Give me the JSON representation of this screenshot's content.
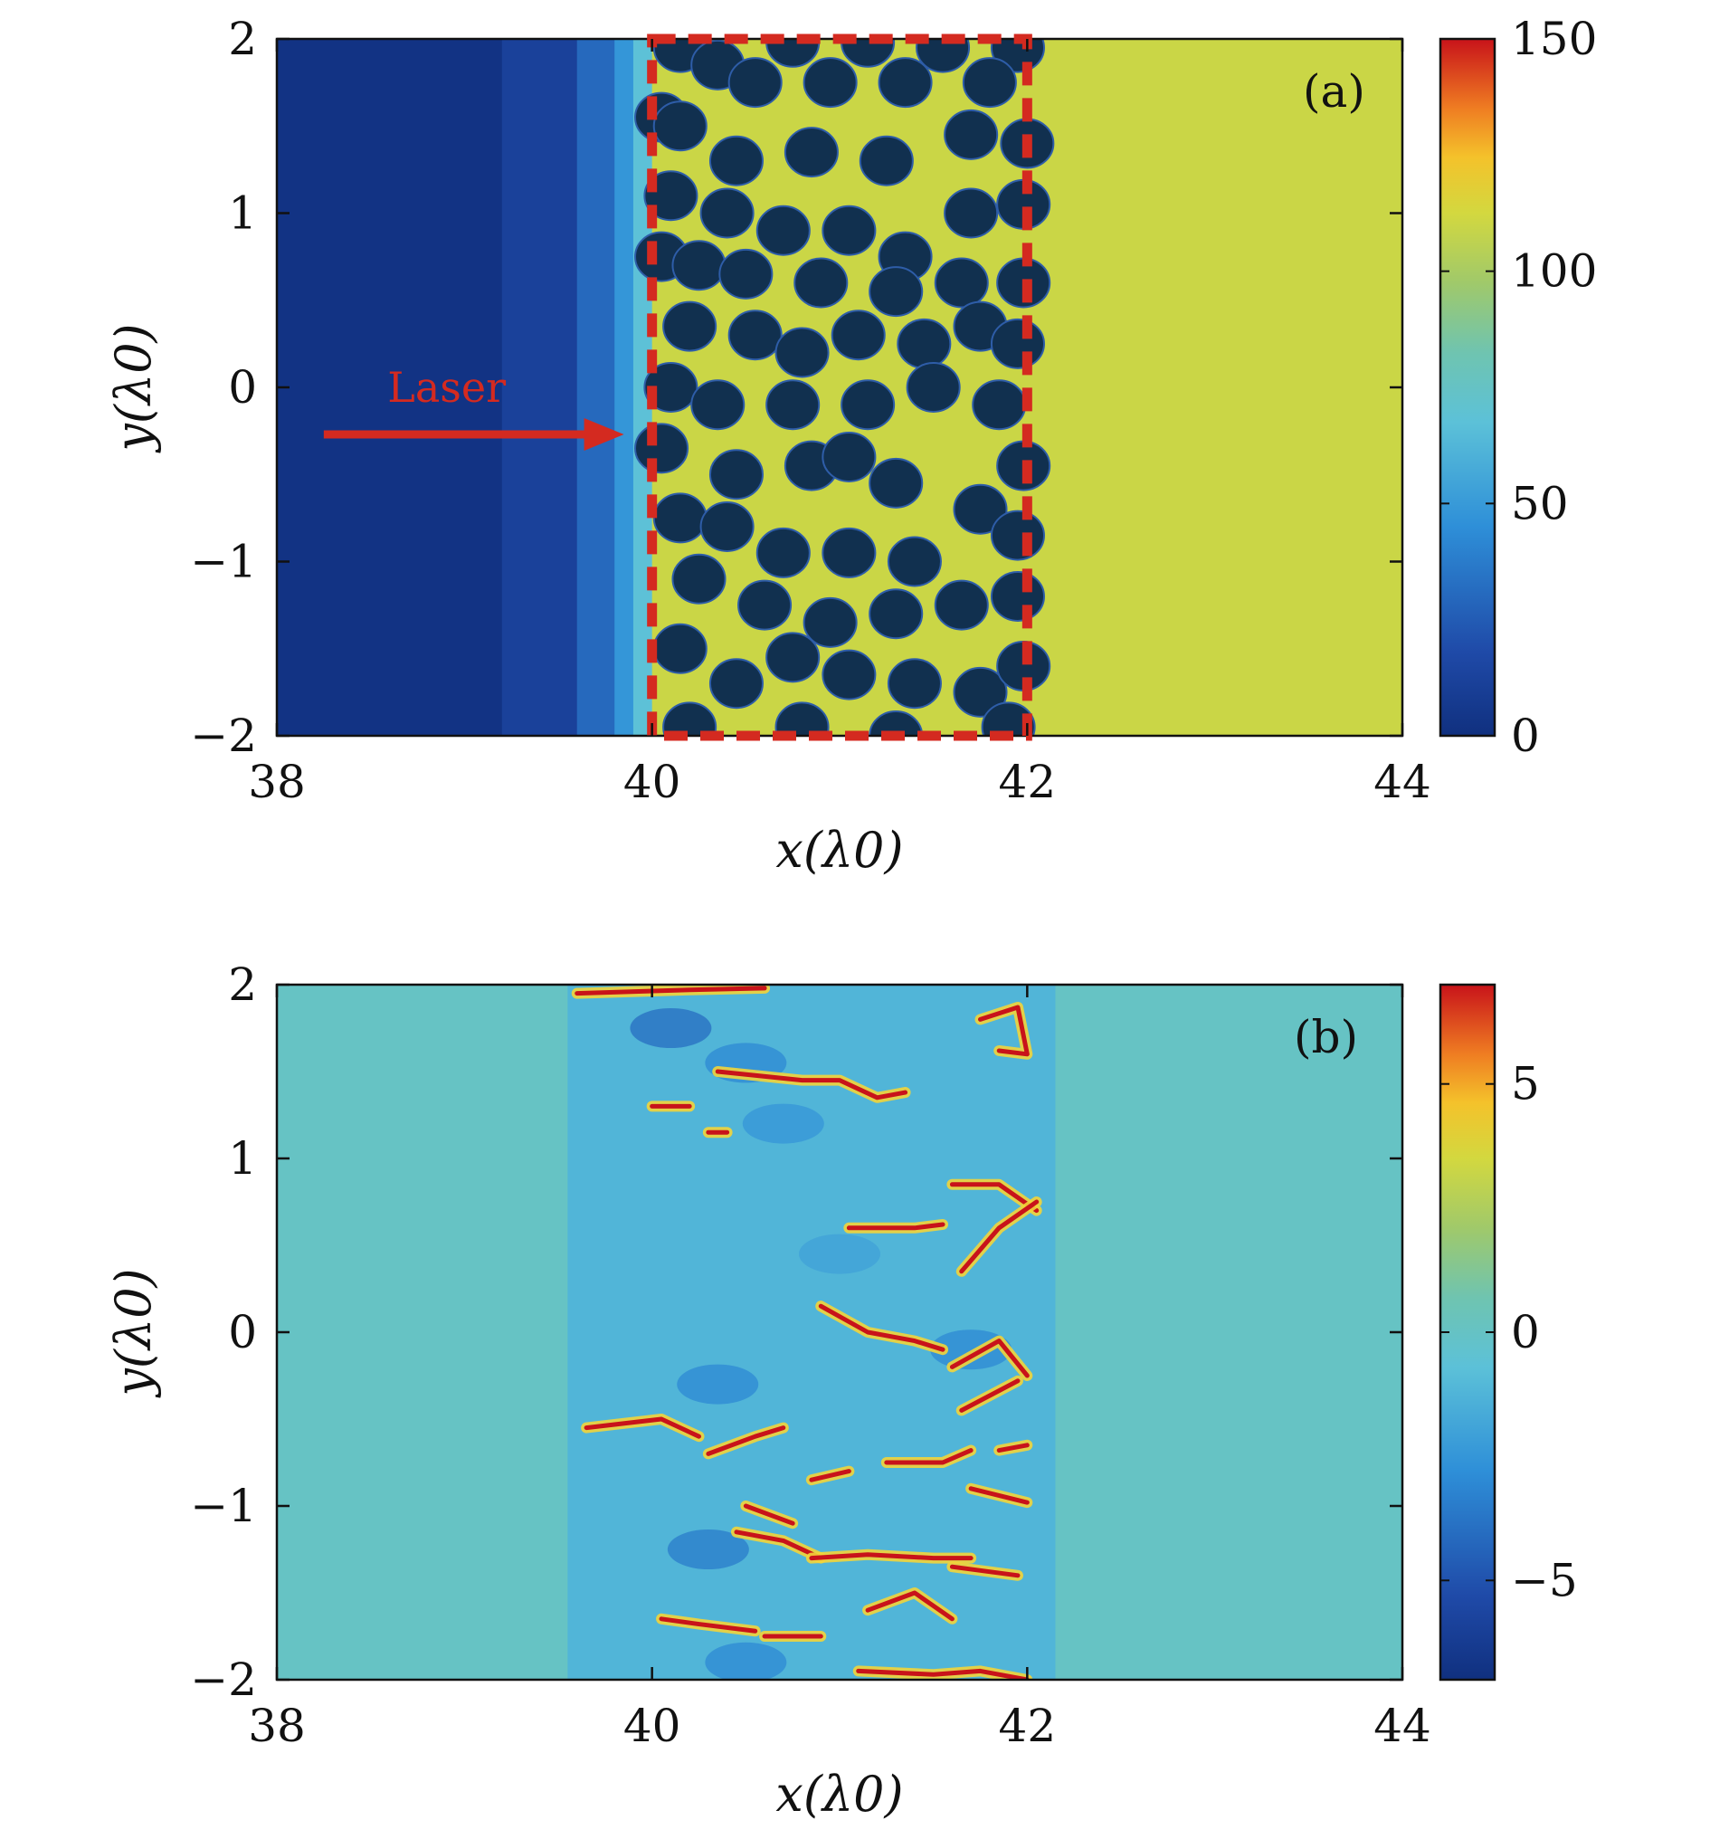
{
  "chart_data": [
    {
      "type": "heatmap",
      "panel_label": "(a)",
      "xlabel": "x(λ0)",
      "ylabel": "y(λ0)",
      "xlim": [
        38,
        44
      ],
      "ylim": [
        -2,
        2
      ],
      "xticks": [
        38,
        40,
        42,
        44
      ],
      "yticks": [
        -2,
        -1,
        0,
        1,
        2
      ],
      "xtick_labels": [
        "38",
        "40",
        "42",
        "44"
      ],
      "ytick_labels": [
        "−2",
        "−1",
        "0",
        "1",
        "2"
      ],
      "colorbar": {
        "min": 0,
        "max": 150,
        "ticks": [
          0,
          50,
          100,
          150
        ],
        "tick_labels": [
          "0",
          "50",
          "100",
          "150"
        ],
        "colormap": "jet"
      },
      "regions": [
        {
          "x": [
            38,
            39.2
          ],
          "value": 2
        },
        {
          "x": [
            39.2,
            39.6
          ],
          "value": 12
        },
        {
          "x": [
            39.6,
            39.8
          ],
          "value": 30
        },
        {
          "x": [
            39.8,
            39.9
          ],
          "value": 48
        },
        {
          "x": [
            39.9,
            40.0
          ],
          "value": 68
        },
        {
          "x": [
            40.0,
            44.0
          ],
          "value": 110
        }
      ],
      "circle_value": 0,
      "circle_radius": 0.14,
      "circles": [
        [
          40.15,
          1.95
        ],
        [
          40.35,
          1.85
        ],
        [
          40.75,
          1.98
        ],
        [
          41.15,
          1.98
        ],
        [
          41.55,
          1.95
        ],
        [
          41.95,
          1.95
        ],
        [
          40.05,
          1.55
        ],
        [
          40.55,
          1.75
        ],
        [
          40.95,
          1.75
        ],
        [
          41.35,
          1.75
        ],
        [
          41.8,
          1.75
        ],
        [
          40.15,
          1.5
        ],
        [
          40.45,
          1.3
        ],
        [
          40.85,
          1.35
        ],
        [
          41.25,
          1.3
        ],
        [
          41.7,
          1.45
        ],
        [
          42.0,
          1.4
        ],
        [
          40.1,
          1.1
        ],
        [
          40.4,
          1.0
        ],
        [
          40.7,
          0.9
        ],
        [
          41.05,
          0.9
        ],
        [
          41.35,
          0.75
        ],
        [
          41.7,
          1.0
        ],
        [
          41.98,
          1.05
        ],
        [
          40.05,
          0.75
        ],
        [
          40.25,
          0.7
        ],
        [
          40.5,
          0.65
        ],
        [
          40.9,
          0.6
        ],
        [
          41.3,
          0.55
        ],
        [
          41.65,
          0.6
        ],
        [
          41.98,
          0.6
        ],
        [
          40.2,
          0.35
        ],
        [
          40.55,
          0.3
        ],
        [
          40.8,
          0.2
        ],
        [
          41.1,
          0.3
        ],
        [
          41.45,
          0.25
        ],
        [
          41.75,
          0.35
        ],
        [
          41.95,
          0.25
        ],
        [
          40.1,
          0.0
        ],
        [
          40.35,
          -0.1
        ],
        [
          40.75,
          -0.1
        ],
        [
          41.15,
          -0.1
        ],
        [
          41.5,
          0.0
        ],
        [
          41.85,
          -0.1
        ],
        [
          40.05,
          -0.35
        ],
        [
          40.45,
          -0.5
        ],
        [
          40.85,
          -0.45
        ],
        [
          41.05,
          -0.4
        ],
        [
          41.3,
          -0.55
        ],
        [
          41.75,
          -0.7
        ],
        [
          41.98,
          -0.45
        ],
        [
          40.15,
          -0.75
        ],
        [
          40.4,
          -0.8
        ],
        [
          40.7,
          -0.95
        ],
        [
          41.05,
          -0.95
        ],
        [
          41.4,
          -1.0
        ],
        [
          41.95,
          -0.85
        ],
        [
          40.25,
          -1.1
        ],
        [
          40.6,
          -1.25
        ],
        [
          40.95,
          -1.35
        ],
        [
          41.3,
          -1.3
        ],
        [
          41.65,
          -1.25
        ],
        [
          41.95,
          -1.2
        ],
        [
          40.15,
          -1.5
        ],
        [
          40.45,
          -1.7
        ],
        [
          40.75,
          -1.55
        ],
        [
          41.05,
          -1.65
        ],
        [
          41.4,
          -1.7
        ],
        [
          41.75,
          -1.75
        ],
        [
          41.98,
          -1.6
        ],
        [
          40.2,
          -1.95
        ],
        [
          40.8,
          -1.95
        ],
        [
          41.3,
          -2.0
        ],
        [
          41.9,
          -1.95
        ]
      ],
      "annotations": [
        {
          "text": "Laser",
          "type": "arrow",
          "from": [
            38.25,
            -0.27
          ],
          "to": [
            39.85,
            -0.27
          ],
          "color": "#d42a20"
        },
        {
          "type": "dashed-rect",
          "x": [
            40,
            42
          ],
          "y": [
            -2,
            2
          ],
          "color": "#d42a20"
        }
      ]
    },
    {
      "type": "heatmap",
      "panel_label": "(b)",
      "xlabel": "x(λ0)",
      "ylabel": "y(λ0)",
      "xlim": [
        38,
        44
      ],
      "ylim": [
        -2,
        2
      ],
      "xticks": [
        38,
        40,
        42,
        44
      ],
      "yticks": [
        -2,
        -1,
        0,
        1,
        2
      ],
      "xtick_labels": [
        "38",
        "40",
        "42",
        "44"
      ],
      "ytick_labels": [
        "−2",
        "−1",
        "0",
        "1",
        "2"
      ],
      "colorbar": {
        "min": -7,
        "max": 7,
        "ticks": [
          -5,
          0,
          5
        ],
        "tick_labels": [
          "−5",
          "0",
          "5"
        ],
        "colormap": "jet"
      },
      "background_value": 0,
      "filament_region": {
        "x": [
          39.55,
          42.15
        ],
        "value": -1.2
      },
      "dark_patches": [
        [
          40.1,
          1.75,
          -4
        ],
        [
          40.5,
          1.55,
          -3
        ],
        [
          40.35,
          -0.3,
          -3
        ],
        [
          40.3,
          -1.25,
          -3.5
        ],
        [
          40.5,
          -1.9,
          -3
        ],
        [
          41.7,
          -0.1,
          -3
        ],
        [
          40.7,
          1.2,
          -2.5
        ],
        [
          41.0,
          0.45,
          -2
        ]
      ],
      "hot_segments": [
        [
          [
            39.6,
            1.95
          ],
          [
            40.2,
            1.97
          ],
          [
            40.6,
            1.98
          ]
        ],
        [
          [
            40.35,
            1.5
          ],
          [
            40.8,
            1.45
          ],
          [
            41.0,
            1.45
          ],
          [
            41.2,
            1.35
          ],
          [
            41.35,
            1.38
          ]
        ],
        [
          [
            41.75,
            1.8
          ],
          [
            41.95,
            1.87
          ],
          [
            42.0,
            1.6
          ],
          [
            41.85,
            1.62
          ]
        ],
        [
          [
            40.0,
            1.3
          ],
          [
            40.2,
            1.3
          ]
        ],
        [
          [
            40.3,
            1.15
          ],
          [
            40.4,
            1.15
          ]
        ],
        [
          [
            41.6,
            0.85
          ],
          [
            41.85,
            0.85
          ],
          [
            42.05,
            0.7
          ]
        ],
        [
          [
            41.05,
            0.6
          ],
          [
            41.4,
            0.6
          ],
          [
            41.55,
            0.62
          ]
        ],
        [
          [
            41.65,
            0.35
          ],
          [
            41.85,
            0.6
          ],
          [
            42.05,
            0.75
          ]
        ],
        [
          [
            40.9,
            0.15
          ],
          [
            41.15,
            0.0
          ],
          [
            41.4,
            -0.05
          ],
          [
            41.55,
            -0.1
          ]
        ],
        [
          [
            41.6,
            -0.2
          ],
          [
            41.85,
            -0.05
          ],
          [
            42.0,
            -0.25
          ]
        ],
        [
          [
            39.65,
            -0.55
          ],
          [
            40.05,
            -0.5
          ],
          [
            40.25,
            -0.6
          ]
        ],
        [
          [
            40.3,
            -0.7
          ],
          [
            40.55,
            -0.6
          ],
          [
            40.7,
            -0.55
          ]
        ],
        [
          [
            40.85,
            -0.85
          ],
          [
            41.05,
            -0.8
          ]
        ],
        [
          [
            41.25,
            -0.75
          ],
          [
            41.55,
            -0.75
          ],
          [
            41.7,
            -0.68
          ]
        ],
        [
          [
            41.65,
            -0.45
          ],
          [
            41.95,
            -0.28
          ]
        ],
        [
          [
            41.85,
            -0.68
          ],
          [
            42.0,
            -0.65
          ]
        ],
        [
          [
            41.7,
            -0.9
          ],
          [
            42.0,
            -0.98
          ]
        ],
        [
          [
            40.5,
            -1.0
          ],
          [
            40.75,
            -1.1
          ]
        ],
        [
          [
            40.45,
            -1.15
          ],
          [
            40.7,
            -1.2
          ],
          [
            40.9,
            -1.3
          ]
        ],
        [
          [
            40.85,
            -1.3
          ],
          [
            41.15,
            -1.28
          ],
          [
            41.5,
            -1.3
          ],
          [
            41.7,
            -1.3
          ]
        ],
        [
          [
            40.05,
            -1.65
          ],
          [
            40.25,
            -1.68
          ],
          [
            40.55,
            -1.72
          ]
        ],
        [
          [
            41.6,
            -1.35
          ],
          [
            41.95,
            -1.4
          ]
        ],
        [
          [
            40.6,
            -1.75
          ],
          [
            40.9,
            -1.75
          ]
        ],
        [
          [
            41.15,
            -1.6
          ],
          [
            41.4,
            -1.5
          ],
          [
            41.6,
            -1.65
          ]
        ],
        [
          [
            41.1,
            -1.95
          ],
          [
            41.5,
            -1.97
          ],
          [
            41.75,
            -1.95
          ],
          [
            42.0,
            -2.0
          ]
        ]
      ]
    }
  ]
}
